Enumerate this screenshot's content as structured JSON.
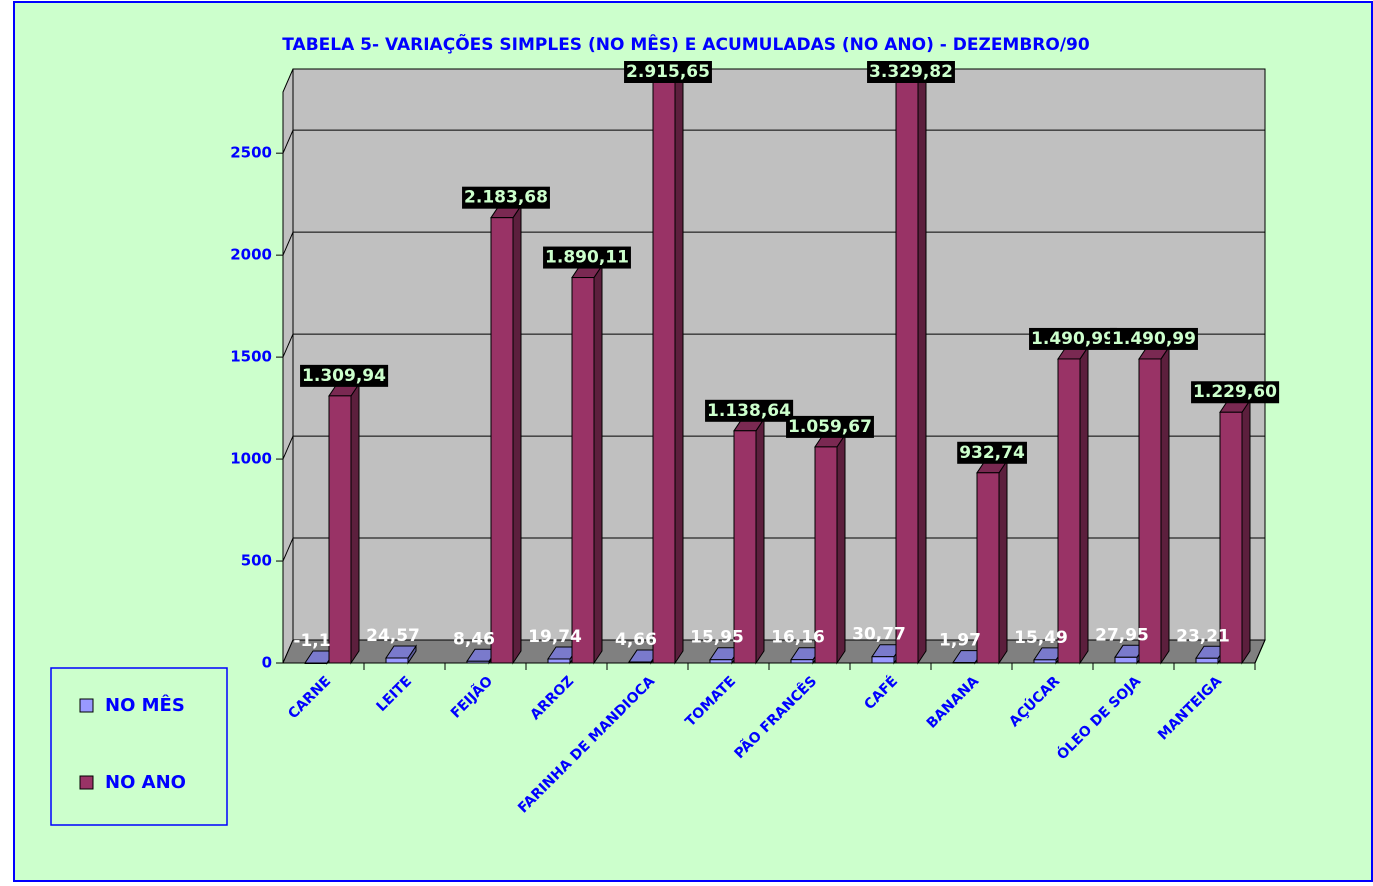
{
  "chart_data": {
    "type": "bar3d",
    "title": "TABELA 5- VARIAÇÕES SIMPLES (NO MÊS) E ACUMULADAS (NO ANO) - DEZEMBRO/90",
    "categories": [
      "CARNE",
      "LEITE",
      "FEIJÃO",
      "ARROZ",
      "FARINHA DE MANDIOCA",
      "TOMATE",
      "PÃO FRANCÊS",
      "CAFÉ",
      "BANANA",
      "AÇÚCAR",
      "ÓLEO DE SOJA",
      "MANTEIGA"
    ],
    "series": [
      {
        "name": "NO MÊS",
        "color": "#9999ff",
        "values": [
          -1.1,
          24.57,
          8.46,
          19.74,
          4.66,
          15.95,
          16.16,
          30.77,
          1.97,
          15.49,
          27.95,
          23.21
        ],
        "value_labels": [
          "-1,1",
          "24,57",
          "8,46",
          "19,74",
          "4,66",
          "15,95",
          "16,16",
          "30,77",
          "1,97",
          "15,49",
          "27,95",
          "23,21"
        ]
      },
      {
        "name": "NO ANO",
        "color": "#993366",
        "values": [
          1309.94,
          null,
          2183.68,
          1890.11,
          2915.65,
          1138.64,
          1059.67,
          3329.82,
          932.74,
          1490.99,
          1490.99,
          1229.6
        ],
        "value_labels": [
          "1.309,94",
          null,
          "2.183,68",
          "1.890,11",
          "2.915,65",
          "1.138,64",
          "1.059,67",
          "3.329,82",
          "932,74",
          "1.490,99",
          "1.490,99",
          "1.229,60"
        ]
      }
    ],
    "ylim": [
      0,
      2800
    ],
    "yticks": [
      0,
      500,
      1000,
      1500,
      2000,
      2500
    ],
    "grid": true,
    "legend": "left"
  }
}
